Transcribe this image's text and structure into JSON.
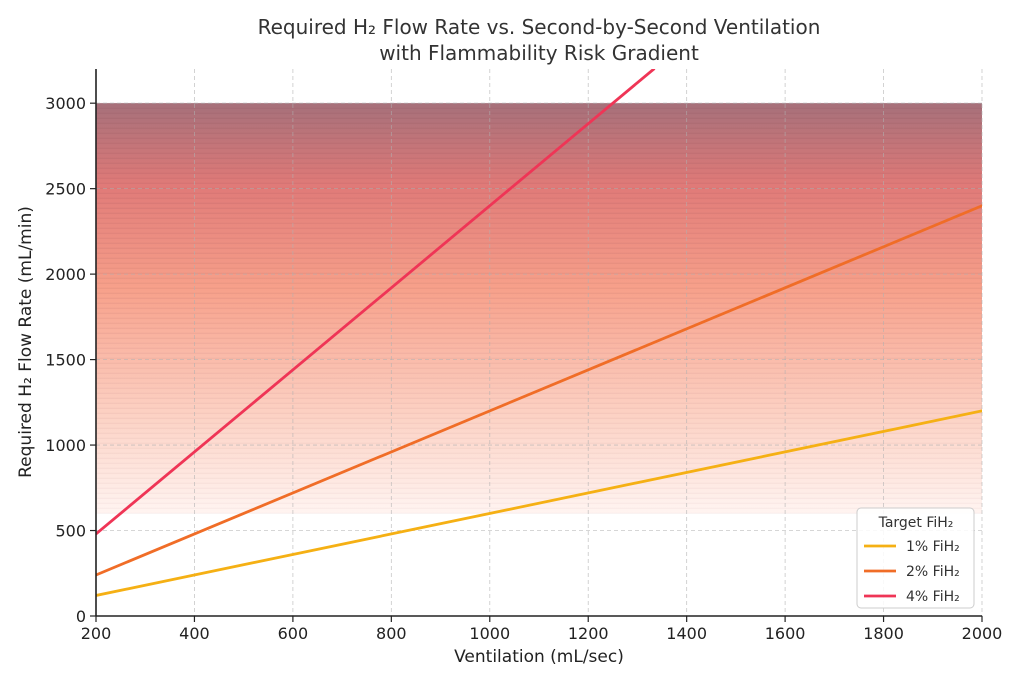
{
  "chart_data": {
    "type": "line",
    "title_line1": "Required H₂ Flow Rate vs. Second-by-Second Ventilation",
    "title_line2": "with Flammability Risk Gradient",
    "xlabel": "Ventilation (mL/sec)",
    "ylabel": "Required H₂ Flow Rate (mL/min)",
    "xlim": [
      200,
      2000
    ],
    "ylim": [
      0,
      3200
    ],
    "x_ticks": [
      200,
      400,
      600,
      800,
      1000,
      1200,
      1400,
      1600,
      1800,
      2000
    ],
    "y_ticks": [
      0,
      500,
      1000,
      1500,
      2000,
      2500,
      3000
    ],
    "grid": true,
    "risk_gradient": {
      "y_from": 600,
      "y_to": 3000,
      "color_low": "#fff2ee",
      "color_mid": "#f7a08a",
      "color_high": "#a6707a"
    },
    "legend": {
      "title": "Target FiH₂",
      "placement": "lower-right"
    },
    "series": [
      {
        "name": "1% FiH₂",
        "color": "#f5b014",
        "x": [
          200,
          2000
        ],
        "y": [
          120,
          1200
        ]
      },
      {
        "name": "2% FiH₂",
        "color": "#f06d27",
        "x": [
          200,
          2000
        ],
        "y": [
          240,
          2400
        ]
      },
      {
        "name": "4% FiH₂",
        "color": "#ef3556",
        "x": [
          200,
          1333.3
        ],
        "y": [
          480,
          3200
        ]
      }
    ]
  }
}
